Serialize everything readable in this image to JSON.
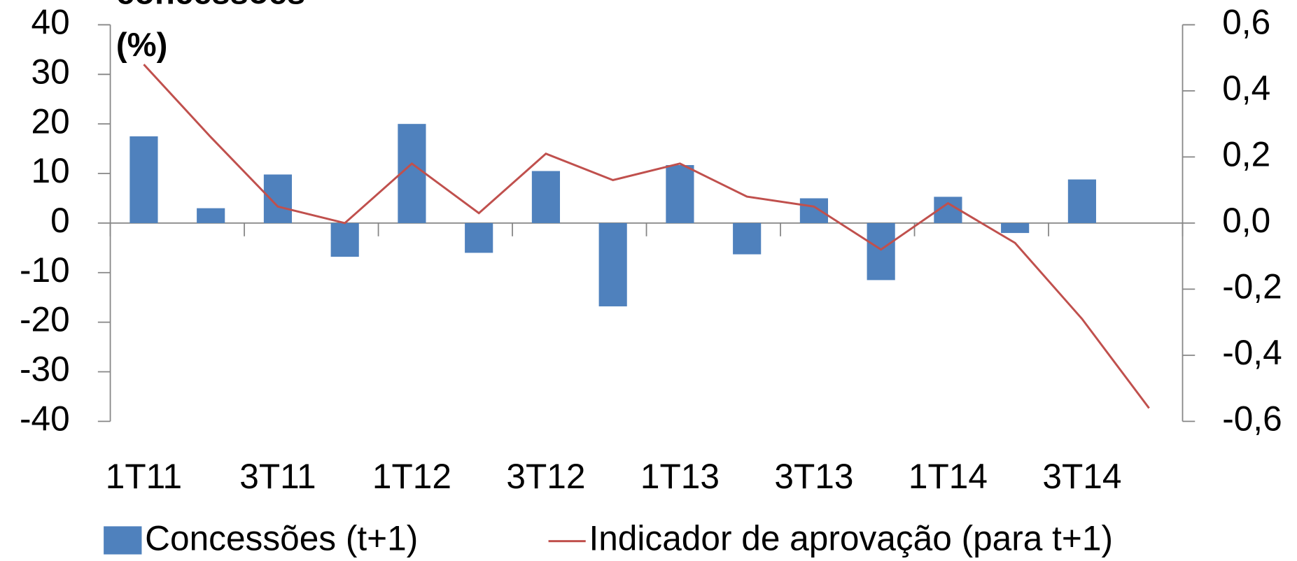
{
  "chart_data": {
    "type": "bar_line",
    "title_lines": [
      "concessões",
      "(%)"
    ],
    "categories": [
      "1T11",
      null,
      "3T11",
      null,
      "1T12",
      null,
      "3T12",
      null,
      "1T13",
      null,
      "3T13",
      null,
      "1T14",
      null,
      "3T14",
      null
    ],
    "series": [
      {
        "name": "Concessões (t+1)",
        "type": "bar",
        "axis": "y",
        "color": "#4f81bd",
        "values": [
          17.5,
          3,
          9.8,
          -6.8,
          20,
          -6,
          10.5,
          -16.8,
          11.7,
          -6.3,
          5,
          -11.5,
          5.3,
          -2,
          8.8,
          null
        ]
      },
      {
        "name": "Indicador de aprovação (para t+1)",
        "type": "line",
        "axis": "y2",
        "color": "#c0504d",
        "values": [
          0.48,
          0.26,
          0.05,
          0,
          0.18,
          0.03,
          0.21,
          0.13,
          0.18,
          0.08,
          0.05,
          -0.08,
          0.06,
          -0.06,
          -0.29,
          -0.56
        ]
      }
    ],
    "ylim": [
      -40,
      40
    ],
    "yticks": [
      -40,
      -30,
      -20,
      -10,
      0,
      10,
      20,
      30,
      40
    ],
    "y2lim": [
      -0.6,
      0.6
    ],
    "y2ticks": [
      {
        "value": -0.6,
        "label": "-0,6"
      },
      {
        "value": -0.4,
        "label": "-0,4"
      },
      {
        "value": -0.2,
        "label": "-0,2"
      },
      {
        "value": 0,
        "label": "0,0"
      },
      {
        "value": 0.2,
        "label": "0,2"
      },
      {
        "value": 0.4,
        "label": "0,4"
      },
      {
        "value": 0.6,
        "label": "0,6"
      }
    ],
    "legend": "bottom"
  }
}
